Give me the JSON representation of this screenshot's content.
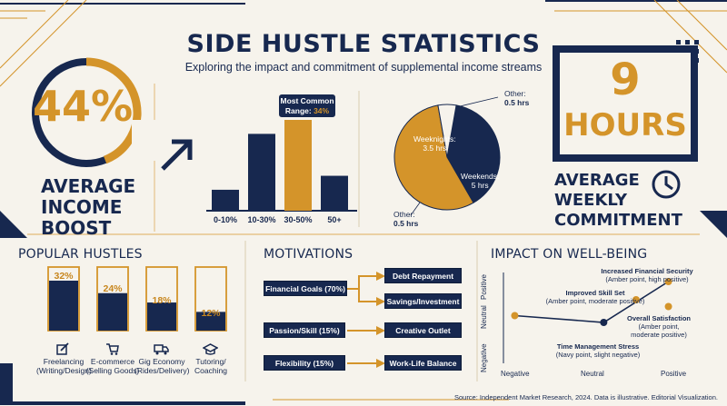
{
  "header": {
    "title": "SIDE HUSTLE STATISTICS",
    "subtitle": "Exploring the impact and commitment of supplemental income streams"
  },
  "income_stat": {
    "value": "44%",
    "label_lines": [
      "AVERAGE",
      "INCOME",
      "BOOST"
    ],
    "ring_fraction": 0.44
  },
  "commitment_stat": {
    "value_line1": "9",
    "value_line2": "HOURS",
    "label_lines": [
      "AVERAGE",
      "WEEKLY",
      "COMMITMENT"
    ]
  },
  "colors": {
    "navy": "#17284f",
    "amber": "#d4942a",
    "background": "#f6f3ec"
  },
  "icons": {
    "income_arrow": "arrow-up-right-icon",
    "commitment": "clock-icon"
  },
  "chart_data": [
    {
      "type": "bar",
      "categories": [
        "0-10%",
        "10-30%",
        "30-50%",
        "50+"
      ],
      "values": [
        3,
        11,
        13,
        5
      ],
      "highlight_index": 2,
      "callout_lines": [
        "Most Common",
        "Range:"
      ],
      "callout_value": "34%"
    },
    {
      "type": "pie",
      "slices": [
        {
          "label": "Weeknights:",
          "value_text": "3.5 hrs",
          "value": 3.5,
          "color": "#17284f"
        },
        {
          "label": "Weekends:",
          "value_text": "5 hrs",
          "value": 5,
          "color": "#d4942a"
        },
        {
          "label": "Other:",
          "value_text": "0.5 hrs",
          "value": 0.5,
          "color": "#f6f3ec"
        }
      ],
      "other_top_label": "Other:",
      "other_top_value": "0.5 hrs"
    },
    {
      "type": "bar",
      "title": "POPULAR HUSTLES",
      "categories": [
        "Freelancing",
        "E-commerce",
        "Gig Economy",
        "Tutoring/"
      ],
      "subcategories": [
        "(Writing/Design)",
        "(Selling Goods)",
        "(Rides/Delivery)",
        "Coaching"
      ],
      "values": [
        32,
        24,
        18,
        12
      ],
      "labels": [
        "32%",
        "24%",
        "18%",
        "12%"
      ],
      "icons": [
        "edit-icon",
        "cart-icon",
        "truck-icon",
        "graduation-cap-icon"
      ]
    },
    {
      "type": "scatter",
      "title": "IMPACT ON WELL-BEING",
      "x_ticks": [
        "Negative",
        "Neutral",
        "Positive"
      ],
      "y_ticks": [
        "Negative",
        "Neutral",
        "Positive"
      ],
      "points": [
        {
          "name": "Increased Financial Security",
          "note": "(Amber point, high positive)",
          "x": 0.95,
          "y": 0.8,
          "color": "#d4942a"
        },
        {
          "name": "Improved Skill Set",
          "note": "(Amber point, moderate positive)",
          "x": 0.55,
          "y": 0.4,
          "color": "#d4942a"
        },
        {
          "name": "Overall Satisfaction",
          "note1": "(Amber point,",
          "note2": "moderate positive)",
          "x": 0.95,
          "y": 0.25,
          "color": "#d4942a"
        },
        {
          "name": "Time Management Stress",
          "note": "(Navy point, slight negative)",
          "x": 0.15,
          "y": -0.1,
          "color": "#17284f"
        },
        {
          "name": "",
          "x": -0.95,
          "y": 0.05,
          "color": "#d4942a"
        }
      ]
    }
  ],
  "motivations": {
    "title": "MOTIVATIONS",
    "left": [
      "Financial Goals (70%)",
      "Passion/Skill (15%)",
      "Flexibility (15%)"
    ],
    "right": [
      "Debt Repayment",
      "Savings/Investment",
      "Creative Outlet",
      "Work-Life Balance"
    ]
  },
  "source": "Source: Independent Market Research, 2024. Data is illustrative. Editorial Visualization."
}
